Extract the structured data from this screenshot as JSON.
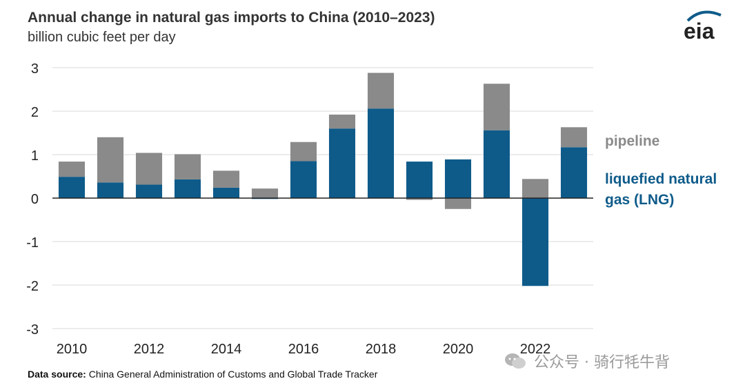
{
  "header": {
    "title": "Annual change in natural gas imports to China (2010–2023)",
    "subtitle": "billion cubic feet per day",
    "logo_text": "eia"
  },
  "footer": {
    "source_label": "Data source:",
    "source_text": "China General Administration of Customs and Global Trade Tracker"
  },
  "watermark": {
    "text": "公众号 · 骑行牦牛背"
  },
  "colors": {
    "pipeline": "#8a8a8a",
    "lng": "#0e5b8a",
    "grid": "#d9d9d9"
  },
  "chart_data": {
    "type": "bar",
    "stacked": true,
    "title": "Annual change in natural gas imports to China (2010–2023)",
    "subtitle": "billion cubic feet per day",
    "xlabel": "",
    "ylabel": "",
    "ylim": [
      -3,
      3
    ],
    "yticks": [
      3,
      2,
      1,
      0,
      -1,
      -2,
      -3
    ],
    "ytick_labels": [
      "3",
      "2",
      "1",
      "0",
      "-1",
      "-2",
      "-3"
    ],
    "categories": [
      2010,
      2011,
      2012,
      2013,
      2014,
      2015,
      2016,
      2017,
      2018,
      2019,
      2020,
      2021,
      2022,
      2023
    ],
    "xtick_labels": [
      "2010",
      "2012",
      "2014",
      "2016",
      "2018",
      "2020",
      "2022"
    ],
    "series": [
      {
        "name": "liquefied natural gas (LNG)",
        "color": "#0e5b8a",
        "values": [
          0.49,
          0.36,
          0.31,
          0.43,
          0.24,
          -0.02,
          0.85,
          1.6,
          2.06,
          0.84,
          0.89,
          1.56,
          -2.02,
          1.17
        ]
      },
      {
        "name": "pipeline",
        "color": "#8a8a8a",
        "values": [
          0.35,
          1.04,
          0.73,
          0.58,
          0.39,
          0.22,
          0.44,
          0.32,
          0.82,
          -0.04,
          -0.25,
          1.07,
          0.44,
          0.46
        ]
      }
    ],
    "legend": {
      "placement": "right",
      "labels": [
        "pipeline",
        "liquefied natural gas (LNG)"
      ]
    },
    "grid": true
  }
}
